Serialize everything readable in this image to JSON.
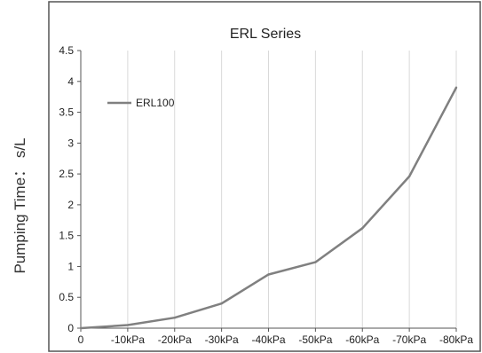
{
  "chart_data": {
    "type": "line",
    "title": "ERL Series",
    "xlabel": "",
    "ylabel": "Pumping Time： s/L",
    "categories": [
      "0",
      "-10kPa",
      "-20kPa",
      "-30kPa",
      "-40kPa",
      "-50kPa",
      "-60kPa",
      "-70kPa",
      "-80kPa"
    ],
    "ylim": [
      0,
      4.5
    ],
    "yticks": [
      "0",
      "0.5",
      "1",
      "1.5",
      "2",
      "2.5",
      "3",
      "3.5",
      "4",
      "4.5"
    ],
    "grid": "vertical",
    "legend": "top-left",
    "series": [
      {
        "name": "ERL100",
        "values": [
          0,
          0.05,
          0.17,
          0.4,
          0.87,
          1.07,
          1.62,
          2.46,
          3.9
        ],
        "color": "#808080"
      }
    ]
  }
}
